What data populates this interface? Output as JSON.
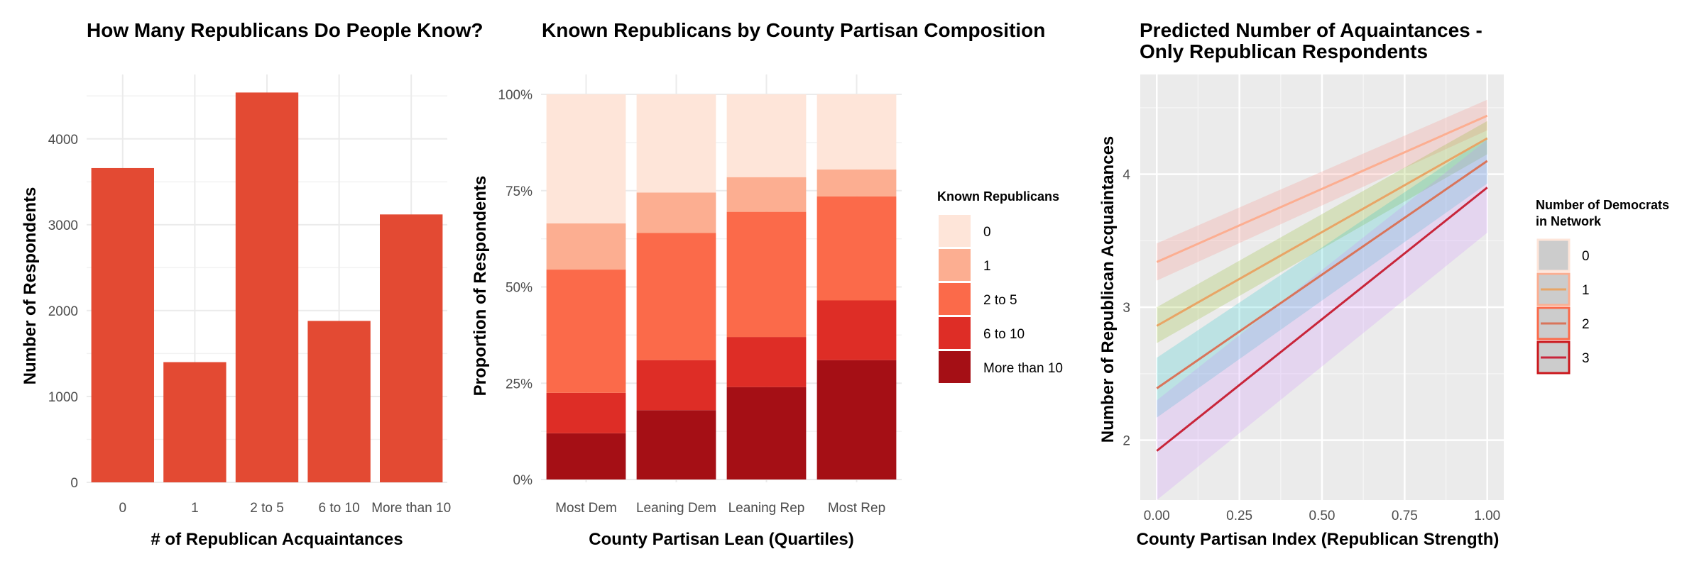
{
  "chart_data": [
    {
      "type": "bar",
      "title": "How Many Republicans Do People Know?",
      "xlabel": "# of Republican Acquaintances",
      "ylabel": "Number of Respondents",
      "categories": [
        "0",
        "1",
        "2 to 5",
        "6 to 10",
        "More than 10"
      ],
      "values": [
        3660,
        1400,
        4540,
        1880,
        3120
      ],
      "ylim": [
        0,
        4750
      ],
      "yticks": [
        0,
        1000,
        2000,
        3000,
        4000
      ],
      "ytick_labels": [
        "0",
        "1000",
        "2000",
        "3000",
        "4000"
      ],
      "bar_color": "#e34a33",
      "grid": true
    },
    {
      "type": "bar",
      "stacked": true,
      "title": "Known Republicans by County Partisan Composition",
      "xlabel": "County Partisan Lean (Quartiles)",
      "ylabel": "Proportion of Respondents",
      "categories": [
        "Most Dem",
        "Leaning Dem",
        "Leaning Rep",
        "Most Rep"
      ],
      "yticks": [
        0,
        0.25,
        0.5,
        0.75,
        1.0
      ],
      "ytick_labels": [
        "0%",
        "25%",
        "50%",
        "75%",
        "100%"
      ],
      "ylim": [
        0,
        1
      ],
      "legend_title": "Known Republicans",
      "legend_position": "right",
      "series": [
        {
          "name": "More than 10",
          "color": "#a50f15",
          "values": [
            0.12,
            0.18,
            0.24,
            0.31
          ]
        },
        {
          "name": "6 to 10",
          "color": "#de2d26",
          "values": [
            0.105,
            0.13,
            0.13,
            0.155
          ]
        },
        {
          "name": "2 to 5",
          "color": "#fb6a4a",
          "values": [
            0.32,
            0.33,
            0.325,
            0.27
          ]
        },
        {
          "name": "1",
          "color": "#fcae91",
          "values": [
            0.12,
            0.105,
            0.09,
            0.07
          ]
        },
        {
          "name": "0",
          "color": "#fee5d9",
          "values": [
            0.335,
            0.255,
            0.215,
            0.195
          ]
        }
      ],
      "legend_order": [
        "0",
        "1",
        "2 to 5",
        "6 to 10",
        "More than 10"
      ],
      "grid": true
    },
    {
      "type": "line",
      "title_lines": [
        "Predicted Number of Aquaintances -",
        "Only Republican Respondents"
      ],
      "xlabel": "County Partisan Index (Republican Strength)",
      "ylabel": "Number of Republican Acquaintances",
      "xlim": [
        -0.05,
        1.05
      ],
      "ylim": [
        1.55,
        4.75
      ],
      "xticks": [
        0,
        0.25,
        0.5,
        0.75,
        1.0
      ],
      "xtick_labels": [
        "0.00",
        "0.25",
        "0.50",
        "0.75",
        "1.00"
      ],
      "yticks": [
        2,
        3,
        4
      ],
      "ytick_labels": [
        "2",
        "3",
        "4"
      ],
      "legend_title_lines": [
        "Number of Democrats",
        "in Network"
      ],
      "legend_position": "right",
      "panel_background": "#ebebeb",
      "series": [
        {
          "name": "0",
          "color": "#fcae91",
          "band_color": "#f8766d",
          "x": [
            0,
            1
          ],
          "y": [
            3.34,
            4.44
          ],
          "lower": [
            3.2,
            4.33
          ],
          "upper": [
            3.48,
            4.56
          ]
        },
        {
          "name": "1",
          "color": "#e8a566",
          "band_color": "#7cae00",
          "x": [
            0,
            1
          ],
          "y": [
            2.86,
            4.27
          ],
          "lower": [
            2.73,
            4.15
          ],
          "upper": [
            3.0,
            4.4
          ]
        },
        {
          "name": "2",
          "color": "#d9745a",
          "band_color": "#00bfc4",
          "x": [
            0,
            1
          ],
          "y": [
            2.39,
            4.1
          ],
          "lower": [
            2.17,
            3.93
          ],
          "upper": [
            2.62,
            4.28
          ]
        },
        {
          "name": "3",
          "color": "#c8253a",
          "band_color": "#c77cff",
          "x": [
            0,
            1
          ],
          "y": [
            1.92,
            3.9
          ],
          "lower": [
            1.55,
            3.56
          ],
          "upper": [
            2.3,
            4.26
          ]
        }
      ],
      "legend_key_colors": [
        "#fee5d9",
        "#fcae91",
        "#fb6a4a",
        "#cb181d"
      ],
      "grid": true
    }
  ]
}
